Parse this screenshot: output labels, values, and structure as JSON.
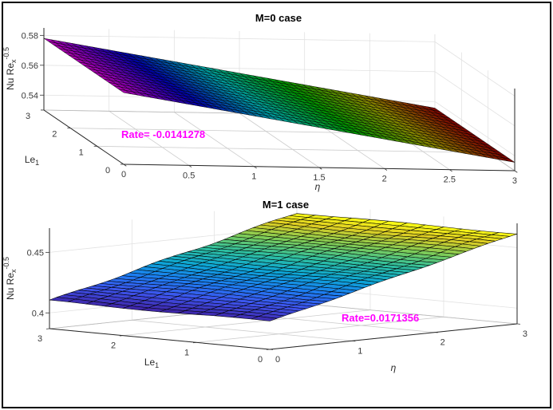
{
  "figure": {
    "background": "#ffffff",
    "border_color": "#000000"
  },
  "chart_data": [
    {
      "type": "surface",
      "title": "M=0 case",
      "axes": {
        "x": {
          "label": "η",
          "ticks": [
            0,
            0.5,
            1,
            1.5,
            2,
            2.5,
            3
          ],
          "range": [
            0,
            3
          ]
        },
        "y": {
          "label": {
            "base": "Le",
            "sub": "1"
          },
          "ticks": [
            0,
            1,
            2,
            3
          ],
          "range": [
            0,
            3
          ]
        },
        "z": {
          "label": {
            "base": "Nu Re",
            "sub": "x",
            "sup": "-0.5"
          },
          "ticks": [
            0.54,
            0.56,
            0.58
          ],
          "range": [
            0.53,
            0.585
          ]
        }
      },
      "surface": {
        "description": "Nu Re_x^-0.5 decreases linearly with η and is independent of Le1",
        "z_at_eta0": 0.578,
        "z_at_eta3": 0.5356,
        "rate": -0.0141278,
        "profile": {
          "eta": [
            0,
            0.5,
            1,
            1.5,
            2,
            2.5,
            3
          ],
          "z": [
            0.578,
            0.5709,
            0.5639,
            0.5568,
            0.5498,
            0.5427,
            0.5356
          ]
        },
        "colormap": "hsv-dark"
      },
      "annotation": {
        "text": "Rate= -0.0141278",
        "color": "#FF00FF"
      }
    },
    {
      "type": "surface",
      "title": "M=1 case",
      "axes": {
        "x": {
          "label": "η",
          "ticks": [
            0,
            1,
            2,
            3
          ],
          "range": [
            0,
            3
          ]
        },
        "y": {
          "label": {
            "base": "Le",
            "sub": "1"
          },
          "ticks": [
            0,
            1,
            2,
            3
          ],
          "range": [
            0,
            3
          ]
        },
        "z": {
          "label": {
            "base": "Nu Re",
            "sub": "x",
            "sup": "-0.5"
          },
          "ticks": [
            0.4,
            0.45
          ],
          "range": [
            0.387,
            0.47
          ]
        }
      },
      "surface": {
        "description": "Nu Re_x^-0.5 increases linearly with η and is independent of Le1",
        "z_at_eta0": 0.41,
        "z_at_eta3": 0.4614,
        "rate": 0.0171356,
        "profile": {
          "eta": [
            0,
            1,
            2,
            3
          ],
          "z": [
            0.41,
            0.4271,
            0.4443,
            0.4614
          ]
        },
        "colormap": "parula"
      },
      "annotation": {
        "text": "Rate=0.0171356",
        "color": "#FF00FF"
      }
    }
  ]
}
